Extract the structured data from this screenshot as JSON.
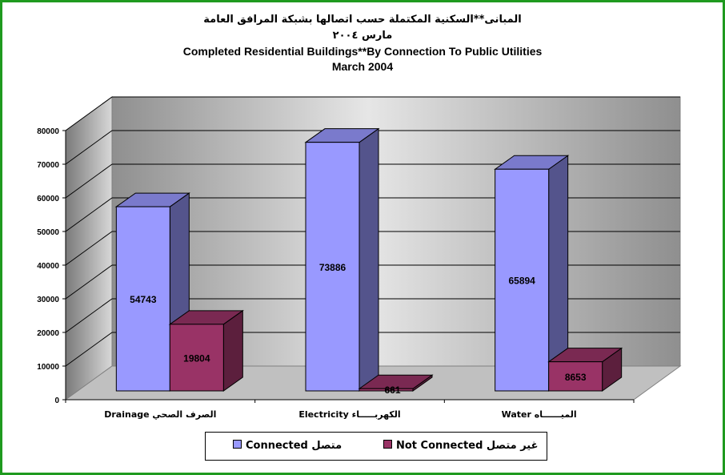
{
  "chart_data": {
    "type": "bar",
    "title_ar": "المبانى**السكنية المكتملة حسب اتصالها بشبكة المرافق العامة",
    "subtitle_ar": "مارس ٢٠٠٤",
    "title": "Completed Residential Buildings**By Connection To Public Utilities",
    "subtitle": "March 2004",
    "categories": [
      "Drainage الصرف الصحي",
      "Electricity الكهربـــــاء",
      "Water الميــــــاه"
    ],
    "series": [
      {
        "name": "Connected متصل",
        "color": "#9999ff",
        "values": [
          54743,
          73886,
          65894
        ]
      },
      {
        "name": "Not Connected غير متصل",
        "color": "#993366",
        "values": [
          19804,
          661,
          8653
        ]
      }
    ],
    "ylim": [
      0,
      80000
    ],
    "yticks": [
      0,
      10000,
      20000,
      30000,
      40000,
      50000,
      60000,
      70000,
      80000
    ],
    "grid": true,
    "legend_position": "bottom"
  }
}
